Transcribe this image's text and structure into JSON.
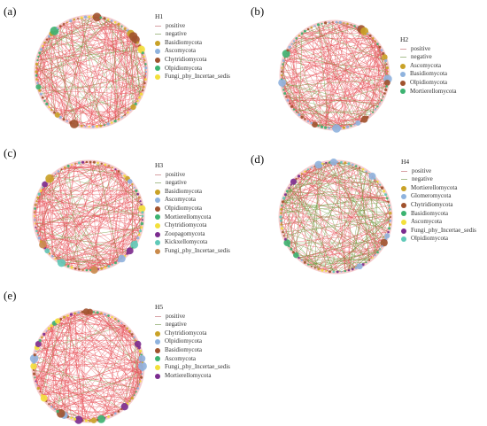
{
  "colors": {
    "positive": "#e8555c",
    "negative": "#6f9a3d",
    "halo": "#f2b6b9",
    "noise_a": "#c9dcf0",
    "noise_b": "#e6eef8"
  },
  "panels": [
    {
      "label": "(a)",
      "network": "H1",
      "positive_label": "positive",
      "negative_label": "negative",
      "neg_ratio": 0.22,
      "taxa": [
        {
          "name": "Basidiomycota",
          "color": "#c9a227"
        },
        {
          "name": "Ascomycota",
          "color": "#8fb3de"
        },
        {
          "name": "Chytridiomycota",
          "color": "#a0522d"
        },
        {
          "name": "Olpidiomycota",
          "color": "#3cb371"
        },
        {
          "name": "Fungi_phy_Incertae_sedis",
          "color": "#f3e03b"
        }
      ]
    },
    {
      "label": "(b)",
      "network": "H2",
      "positive_label": "positive",
      "negative_label": "negative",
      "neg_ratio": 0.2,
      "taxa": [
        {
          "name": "Ascomycota",
          "color": "#c9a227"
        },
        {
          "name": "Basidiomycota",
          "color": "#8fb3de"
        },
        {
          "name": "Olpidiomycota",
          "color": "#a0522d"
        },
        {
          "name": "Mortierellomycota",
          "color": "#3cb371"
        }
      ]
    },
    {
      "label": "(c)",
      "network": "H3",
      "positive_label": "positive",
      "negative_label": "negative",
      "neg_ratio": 0.18,
      "taxa": [
        {
          "name": "Basidiomycota",
          "color": "#c9a227"
        },
        {
          "name": "Ascomycota",
          "color": "#8fb3de"
        },
        {
          "name": "Olpidiomycota",
          "color": "#a0522d"
        },
        {
          "name": "Mortierellomycota",
          "color": "#3cb371"
        },
        {
          "name": "Chytridiomycota",
          "color": "#f3e03b"
        },
        {
          "name": "Zoopagomycota",
          "color": "#7b2c8f"
        },
        {
          "name": "Kickxellomycota",
          "color": "#5fc9b8"
        },
        {
          "name": "Fungi_phy_Incertae_sedis",
          "color": "#c98a4b"
        }
      ]
    },
    {
      "label": "(d)",
      "network": "H4",
      "positive_label": "positive",
      "negative_label": "negative",
      "neg_ratio": 0.45,
      "taxa": [
        {
          "name": "Mortierellomycota",
          "color": "#c9a227"
        },
        {
          "name": "Glomeromycota",
          "color": "#8fb3de"
        },
        {
          "name": "Chytridiomycota",
          "color": "#a0522d"
        },
        {
          "name": "Basidiomycota",
          "color": "#3cb371"
        },
        {
          "name": "Ascomycota",
          "color": "#f3e03b"
        },
        {
          "name": "Fungi_phy_Incertae_sedis",
          "color": "#7b2c8f"
        },
        {
          "name": "Olpidiomycota",
          "color": "#5fc9b8"
        }
      ]
    },
    {
      "label": "(e)",
      "network": "H5",
      "positive_label": "positive",
      "negative_label": "negative",
      "neg_ratio": 0.1,
      "taxa": [
        {
          "name": "Chytridiomycota",
          "color": "#c9a227"
        },
        {
          "name": "Olpidiomycota",
          "color": "#8fb3de"
        },
        {
          "name": "Basidiomycota",
          "color": "#a0522d"
        },
        {
          "name": "Ascomycota",
          "color": "#3cb371"
        },
        {
          "name": "Fungi_phy_Incertae_sedis",
          "color": "#f3e03b"
        },
        {
          "name": "Mortierellomycota",
          "color": "#7b2c8f"
        }
      ]
    }
  ]
}
